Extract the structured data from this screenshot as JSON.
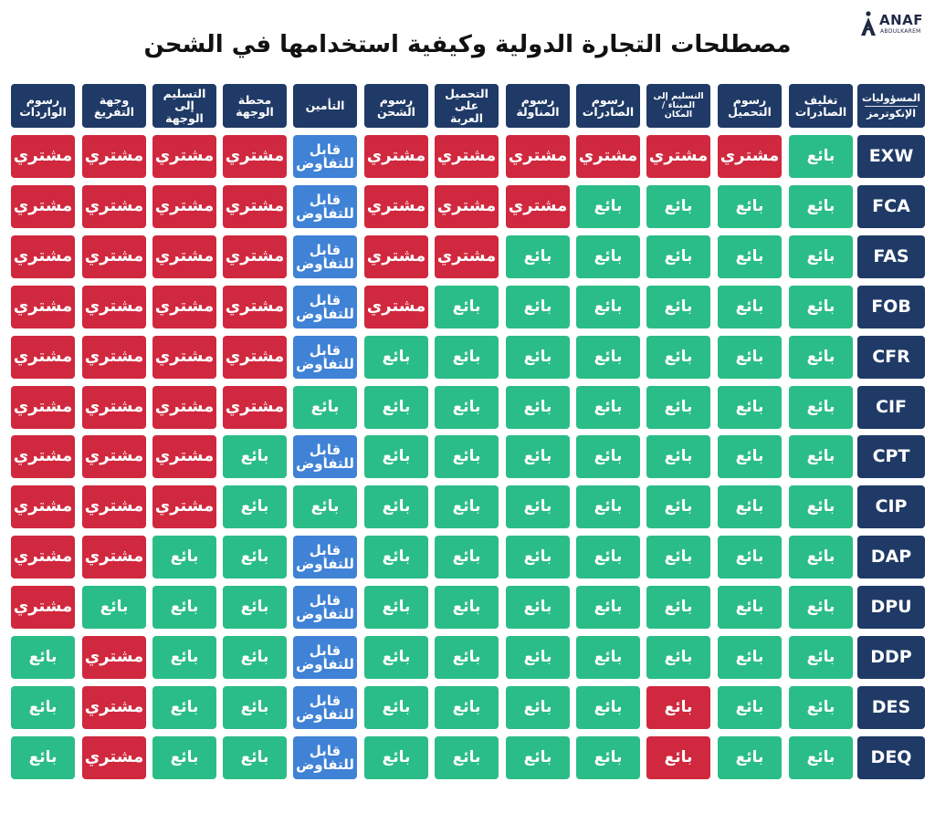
{
  "brand": {
    "name": "ANAF",
    "sub": "ABDULKAREM"
  },
  "title": "مصطلحات التجارة الدولية وكيفية استخدامها في الشحن",
  "labels": {
    "buyer": "مشتري",
    "seller": "بائع",
    "negotiable": [
      "قابل",
      "للتفاوض"
    ]
  },
  "colors": {
    "header": "#1f3a66",
    "buyer": "#d0283e",
    "seller": "#2bbd87",
    "negotiable": "#3f82d6",
    "title": "#111111"
  },
  "corner_header": {
    "line1": "المسؤوليات",
    "line2": "الإنكوترمز"
  },
  "column_headers": [
    "تغليف الصادرات",
    "رسوم التحميل",
    "التسليم إلى الميناء / المكان",
    "رسوم الصادرات",
    "رسوم المناولة",
    "التحميل على العربة",
    "رسوم الشحن",
    "التأمين",
    "محطة الوجهة",
    "التسليم إلى الوجهة",
    "وجهة التفريغ",
    "رسوم الواردات"
  ],
  "rows": [
    {
      "term": "EXW",
      "cells": [
        "S",
        "B",
        "B",
        "B",
        "B",
        "B",
        "B",
        "N",
        "B",
        "B",
        "B",
        "B"
      ]
    },
    {
      "term": "FCA",
      "cells": [
        "S",
        "S",
        "S",
        "S",
        "B",
        "B",
        "B",
        "N",
        "B",
        "B",
        "B",
        "B"
      ]
    },
    {
      "term": "FAS",
      "cells": [
        "S",
        "S",
        "S",
        "S",
        "S",
        "B",
        "B",
        "N",
        "B",
        "B",
        "B",
        "B"
      ]
    },
    {
      "term": "FOB",
      "cells": [
        "S",
        "S",
        "S",
        "S",
        "S",
        "S",
        "B",
        "N",
        "B",
        "B",
        "B",
        "B"
      ]
    },
    {
      "term": "CFR",
      "cells": [
        "S",
        "S",
        "S",
        "S",
        "S",
        "S",
        "S",
        "N",
        "B",
        "B",
        "B",
        "B"
      ]
    },
    {
      "term": "CIF",
      "cells": [
        "S",
        "S",
        "S",
        "S",
        "S",
        "S",
        "S",
        "S",
        "B",
        "B",
        "B",
        "B"
      ]
    },
    {
      "term": "CPT",
      "cells": [
        "S",
        "S",
        "S",
        "S",
        "S",
        "S",
        "S",
        "N",
        "S",
        "B",
        "B",
        "B"
      ]
    },
    {
      "term": "CIP",
      "cells": [
        "S",
        "S",
        "S",
        "S",
        "S",
        "S",
        "S",
        "S",
        "S",
        "B",
        "B",
        "B"
      ]
    },
    {
      "term": "DAP",
      "cells": [
        "S",
        "S",
        "S",
        "S",
        "S",
        "S",
        "S",
        "N",
        "S",
        "S",
        "B",
        "B"
      ]
    },
    {
      "term": "DPU",
      "cells": [
        "S",
        "S",
        "S",
        "S",
        "S",
        "S",
        "S",
        "N",
        "S",
        "S",
        "S",
        "B"
      ]
    },
    {
      "term": "DDP",
      "cells": [
        "S",
        "S",
        "S",
        "S",
        "S",
        "S",
        "S",
        "N",
        "S",
        "S",
        "B",
        "S"
      ]
    },
    {
      "term": "DES",
      "cells": [
        "S",
        "S",
        "SR",
        "S",
        "S",
        "S",
        "S",
        "N",
        "S",
        "S",
        "B",
        "S"
      ]
    },
    {
      "term": "DEQ",
      "cells": [
        "S",
        "S",
        "SR",
        "S",
        "S",
        "S",
        "S",
        "N",
        "S",
        "S",
        "B",
        "S"
      ]
    }
  ]
}
